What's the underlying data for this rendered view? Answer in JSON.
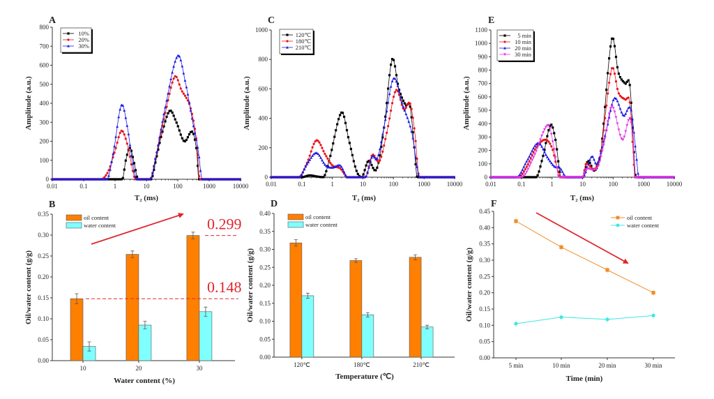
{
  "chart_data": [
    {
      "panel": "A",
      "type": "line",
      "xscale": "log",
      "xlabel": "T₂ (ms)",
      "ylabel": "Amplitude (a.u.)",
      "xlim": [
        0.01,
        10000
      ],
      "ylim": [
        0,
        800
      ],
      "xticks": [
        "0.01",
        "0.1",
        "1",
        "10",
        "100",
        "1000",
        "10000"
      ],
      "yticks": [
        "0",
        "100",
        "200",
        "300",
        "400",
        "500",
        "600",
        "700",
        "800"
      ],
      "legend": "top-left",
      "series": [
        {
          "name": "10%",
          "color": "#000000",
          "marker": "square",
          "points": [
            [
              0.01,
              0
            ],
            [
              1.7,
              0
            ],
            [
              2.2,
              100
            ],
            [
              3,
              165
            ],
            [
              4,
              90
            ],
            [
              5.5,
              0
            ],
            [
              14,
              0
            ],
            [
              20,
              100
            ],
            [
              30,
              230
            ],
            [
              55,
              360
            ],
            [
              90,
              300
            ],
            [
              160,
              200
            ],
            [
              290,
              250
            ],
            [
              400,
              150
            ],
            [
              470,
              0
            ],
            [
              10000,
              0
            ]
          ]
        },
        {
          "name": "20%",
          "color": "#e8141c",
          "marker": "circle",
          "points": [
            [
              0.01,
              0
            ],
            [
              0.35,
              0
            ],
            [
              0.6,
              40
            ],
            [
              1,
              150
            ],
            [
              1.6,
              255
            ],
            [
              2.5,
              180
            ],
            [
              3.5,
              60
            ],
            [
              4.5,
              0
            ],
            [
              13,
              0
            ],
            [
              20,
              120
            ],
            [
              40,
              350
            ],
            [
              80,
              540
            ],
            [
              130,
              470
            ],
            [
              250,
              380
            ],
            [
              400,
              200
            ],
            [
              500,
              0
            ],
            [
              10000,
              0
            ]
          ]
        },
        {
          "name": "30%",
          "color": "#1a1ae6",
          "marker": "triangle",
          "points": [
            [
              0.01,
              0
            ],
            [
              0.55,
              0
            ],
            [
              0.9,
              150
            ],
            [
              1.6,
              390
            ],
            [
              2.5,
              270
            ],
            [
              3.5,
              100
            ],
            [
              5,
              0
            ],
            [
              13,
              0
            ],
            [
              20,
              120
            ],
            [
              40,
              380
            ],
            [
              100,
              650
            ],
            [
              180,
              500
            ],
            [
              300,
              300
            ],
            [
              450,
              150
            ],
            [
              600,
              0
            ],
            [
              10000,
              0
            ]
          ]
        }
      ]
    },
    {
      "panel": "C",
      "type": "line",
      "xscale": "log",
      "xlabel": "T₂ (ms)",
      "ylabel": "Amplitude (a.u.)",
      "xlim": [
        0.01,
        10000
      ],
      "ylim": [
        0,
        1000
      ],
      "xticks": [
        "0.01",
        "0.1",
        "1",
        "10",
        "100",
        "1000",
        "10000"
      ],
      "yticks": [
        "0",
        "200",
        "400",
        "600",
        "800",
        "1000"
      ],
      "legend": "top-left",
      "series": [
        {
          "name": "120℃",
          "color": "#000000",
          "marker": "square",
          "points": [
            [
              0.01,
              0
            ],
            [
              0.1,
              0
            ],
            [
              0.18,
              12
            ],
            [
              0.3,
              5
            ],
            [
              0.5,
              0
            ],
            [
              0.8,
              120
            ],
            [
              2,
              440
            ],
            [
              3.5,
              250
            ],
            [
              6,
              50
            ],
            [
              9,
              0
            ],
            [
              15,
              110
            ],
            [
              28,
              55
            ],
            [
              50,
              350
            ],
            [
              90,
              800
            ],
            [
              150,
              600
            ],
            [
              250,
              490
            ],
            [
              350,
              480
            ],
            [
              480,
              200
            ],
            [
              600,
              0
            ],
            [
              10000,
              0
            ]
          ]
        },
        {
          "name": "180℃",
          "color": "#e8141c",
          "marker": "circle",
          "points": [
            [
              0.01,
              0
            ],
            [
              0.08,
              0
            ],
            [
              0.15,
              100
            ],
            [
              0.3,
              250
            ],
            [
              0.6,
              150
            ],
            [
              1,
              80
            ],
            [
              1.8,
              60
            ],
            [
              2.5,
              20
            ],
            [
              3,
              0
            ],
            [
              12,
              0
            ],
            [
              20,
              150
            ],
            [
              35,
              110
            ],
            [
              60,
              300
            ],
            [
              120,
              590
            ],
            [
              220,
              460
            ],
            [
              350,
              500
            ],
            [
              500,
              300
            ],
            [
              700,
              0
            ],
            [
              10000,
              0
            ]
          ]
        },
        {
          "name": "210℃",
          "color": "#1a1ae6",
          "marker": "triangle",
          "points": [
            [
              0.01,
              0
            ],
            [
              0.08,
              0
            ],
            [
              0.15,
              90
            ],
            [
              0.3,
              165
            ],
            [
              0.6,
              80
            ],
            [
              1,
              65
            ],
            [
              1.8,
              80
            ],
            [
              2.5,
              30
            ],
            [
              3,
              0
            ],
            [
              12,
              0
            ],
            [
              20,
              140
            ],
            [
              30,
              130
            ],
            [
              50,
              350
            ],
            [
              100,
              670
            ],
            [
              200,
              490
            ],
            [
              400,
              300
            ],
            [
              600,
              60
            ],
            [
              700,
              0
            ],
            [
              10000,
              0
            ]
          ]
        }
      ]
    },
    {
      "panel": "E",
      "type": "line",
      "xscale": "log",
      "xlabel": "T₂ (ms)",
      "ylabel": "Amplitude (a.u.)",
      "xlim": [
        0.01,
        10000
      ],
      "ylim": [
        0,
        1100
      ],
      "xticks": [
        "0.01",
        "0.1",
        "1",
        "10",
        "100",
        "1000",
        "10000"
      ],
      "yticks": [
        "0",
        "100",
        "200",
        "300",
        "400",
        "500",
        "600",
        "700",
        "800",
        "900",
        "1000",
        "1100"
      ],
      "legend": "top-left",
      "series": [
        {
          "name": "5 min",
          "color": "#000000",
          "marker": "square",
          "points": [
            [
              0.01,
              0
            ],
            [
              0.3,
              0
            ],
            [
              0.5,
              150
            ],
            [
              0.9,
              390
            ],
            [
              1.3,
              280
            ],
            [
              2,
              0
            ],
            [
              10,
              0
            ],
            [
              15,
              120
            ],
            [
              25,
              50
            ],
            [
              40,
              200
            ],
            [
              90,
              1030
            ],
            [
              150,
              780
            ],
            [
              250,
              700
            ],
            [
              350,
              690
            ],
            [
              450,
              300
            ],
            [
              550,
              0
            ],
            [
              10000,
              0
            ]
          ]
        },
        {
          "name": "10 min",
          "color": "#e8141c",
          "marker": "circle",
          "points": [
            [
              0.01,
              0
            ],
            [
              0.08,
              0
            ],
            [
              0.15,
              80
            ],
            [
              0.3,
              220
            ],
            [
              0.6,
              280
            ],
            [
              1,
              220
            ],
            [
              1.5,
              60
            ],
            [
              2,
              0
            ],
            [
              10,
              0
            ],
            [
              13,
              100
            ],
            [
              25,
              60
            ],
            [
              40,
              200
            ],
            [
              90,
              810
            ],
            [
              150,
              630
            ],
            [
              250,
              580
            ],
            [
              350,
              560
            ],
            [
              450,
              200
            ],
            [
              520,
              0
            ],
            [
              10000,
              0
            ]
          ]
        },
        {
          "name": "20 min",
          "color": "#1a1ae6",
          "marker": "triangle",
          "points": [
            [
              0.01,
              0
            ],
            [
              0.07,
              0
            ],
            [
              0.15,
              120
            ],
            [
              0.35,
              255
            ],
            [
              0.7,
              150
            ],
            [
              1.2,
              80
            ],
            [
              1.8,
              70
            ],
            [
              3,
              0
            ],
            [
              10,
              0
            ],
            [
              20,
              155
            ],
            [
              30,
              100
            ],
            [
              60,
              350
            ],
            [
              110,
              590
            ],
            [
              220,
              460
            ],
            [
              380,
              510
            ],
            [
              550,
              200
            ],
            [
              700,
              0
            ],
            [
              10000,
              0
            ]
          ]
        },
        {
          "name": "30 min",
          "color": "#e632e6",
          "marker": "triangle-down",
          "points": [
            [
              0.01,
              0
            ],
            [
              0.1,
              0
            ],
            [
              0.25,
              150
            ],
            [
              0.75,
              390
            ],
            [
              1.2,
              200
            ],
            [
              1.7,
              0
            ],
            [
              10,
              0
            ],
            [
              13,
              60
            ],
            [
              30,
              70
            ],
            [
              50,
              250
            ],
            [
              90,
              530
            ],
            [
              200,
              280
            ],
            [
              350,
              440
            ],
            [
              450,
              280
            ],
            [
              520,
              0
            ],
            [
              10000,
              0
            ]
          ]
        }
      ]
    },
    {
      "panel": "B",
      "type": "bar",
      "xlabel": "Water content (%)",
      "ylabel": "Oil/water content (g/g)",
      "ylim": [
        0,
        0.35
      ],
      "yticks": [
        "0.00",
        "0.05",
        "0.10",
        "0.15",
        "0.20",
        "0.25",
        "0.30",
        "0.35"
      ],
      "categories": [
        "10",
        "20",
        "30"
      ],
      "legend": "top-left",
      "series": [
        {
          "name": "oil content",
          "color": "#ff7f00",
          "values": [
            0.148,
            0.254,
            0.299
          ],
          "errors": [
            0.012,
            0.008,
            0.008
          ]
        },
        {
          "name": "water content",
          "color": "#80ffff",
          "values": [
            0.034,
            0.085,
            0.117
          ],
          "errors": [
            0.011,
            0.009,
            0.011
          ]
        }
      ],
      "annotations": [
        {
          "text": "0.299",
          "value": 0.299,
          "color": "#e0262c"
        },
        {
          "text": "0.148",
          "value": 0.148,
          "color": "#e0262c"
        }
      ],
      "trend_arrow": "up"
    },
    {
      "panel": "D",
      "type": "bar",
      "xlabel": "Temperature (℃)",
      "ylabel": "Oil/water content (g/g)",
      "ylim": [
        0,
        0.4
      ],
      "yticks": [
        "0.00",
        "0.05",
        "0.10",
        "0.15",
        "0.20",
        "0.25",
        "0.30",
        "0.35",
        "0.40"
      ],
      "categories": [
        "120℃",
        "180℃",
        "210℃"
      ],
      "legend": "top-left",
      "series": [
        {
          "name": "oil content",
          "color": "#ff7f00",
          "values": [
            0.318,
            0.269,
            0.278
          ],
          "errors": [
            0.009,
            0.005,
            0.007
          ]
        },
        {
          "name": "water content",
          "color": "#80ffff",
          "values": [
            0.171,
            0.118,
            0.084
          ],
          "errors": [
            0.007,
            0.006,
            0.005
          ]
        }
      ]
    },
    {
      "panel": "F",
      "type": "line",
      "xlabel": "Time (min)",
      "ylabel": "Oil/water content (g/g)",
      "ylim": [
        0,
        0.45
      ],
      "yticks": [
        "0.00",
        "0.05",
        "0.10",
        "0.15",
        "0.20",
        "0.25",
        "0.30",
        "0.35",
        "0.40",
        "0.45"
      ],
      "categories": [
        "5 min",
        "10 min",
        "20 min",
        "30 min"
      ],
      "legend": "top-right",
      "series": [
        {
          "name": "oil content",
          "color": "#f08c28",
          "marker": "square",
          "values": [
            0.42,
            0.34,
            0.27,
            0.2
          ]
        },
        {
          "name": "water content",
          "color": "#3ce6e6",
          "marker": "circle",
          "values": [
            0.105,
            0.125,
            0.118,
            0.13
          ]
        }
      ],
      "trend_arrow": "down"
    }
  ]
}
